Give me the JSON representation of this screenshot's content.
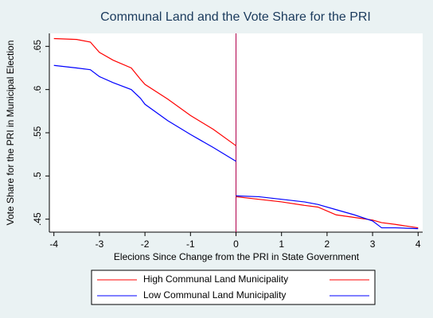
{
  "chart_data": {
    "type": "line",
    "title": "Communal Land and the Vote Share for the PRI",
    "x_label": "Elecions Since Change from the PRI in State Government",
    "y_label": "Vote Share for the PRI in Municipal Election",
    "x": [
      -4,
      -3.5,
      -3.2,
      -3,
      -2.7,
      -2.3,
      -2.1,
      -2,
      -1.5,
      -1,
      -0.5,
      0,
      null,
      0,
      0.5,
      1,
      1.5,
      1.8,
      2.2,
      2.6,
      3,
      3.2,
      3.5,
      4
    ],
    "series": [
      {
        "name": "High Communal Land Municipality",
        "color": "#ff0000",
        "values": [
          0.659,
          0.658,
          0.655,
          0.643,
          0.634,
          0.625,
          0.612,
          0.606,
          0.589,
          0.57,
          0.554,
          0.535,
          null,
          0.476,
          0.473,
          0.47,
          0.466,
          0.464,
          0.455,
          0.452,
          0.449,
          0.446,
          0.444,
          0.44
        ]
      },
      {
        "name": "Low Communal Land Municipality",
        "color": "#0000ff",
        "values": [
          0.628,
          0.625,
          0.623,
          0.615,
          0.608,
          0.6,
          0.59,
          0.583,
          0.564,
          0.548,
          0.533,
          0.517,
          null,
          0.477,
          0.476,
          0.473,
          0.47,
          0.467,
          0.461,
          0.455,
          0.448,
          0.44,
          0.44,
          0.439
        ]
      }
    ],
    "xlim": [
      -4.1,
      4.1
    ],
    "xticks": [
      -4,
      -3,
      -2,
      -1,
      0,
      1,
      2,
      3,
      4
    ],
    "ylim": [
      0.435,
      0.665
    ],
    "yticks": [
      {
        "value": 0.45,
        "label": ".45"
      },
      {
        "value": 0.5,
        "label": ".5"
      },
      {
        "value": 0.55,
        "label": ".55"
      },
      {
        "value": 0.6,
        "label": ".6"
      },
      {
        "value": 0.65,
        "label": ".65"
      }
    ],
    "vertical_line": 0,
    "vertical_line_color": "#b0004c",
    "legend": "bottom"
  }
}
